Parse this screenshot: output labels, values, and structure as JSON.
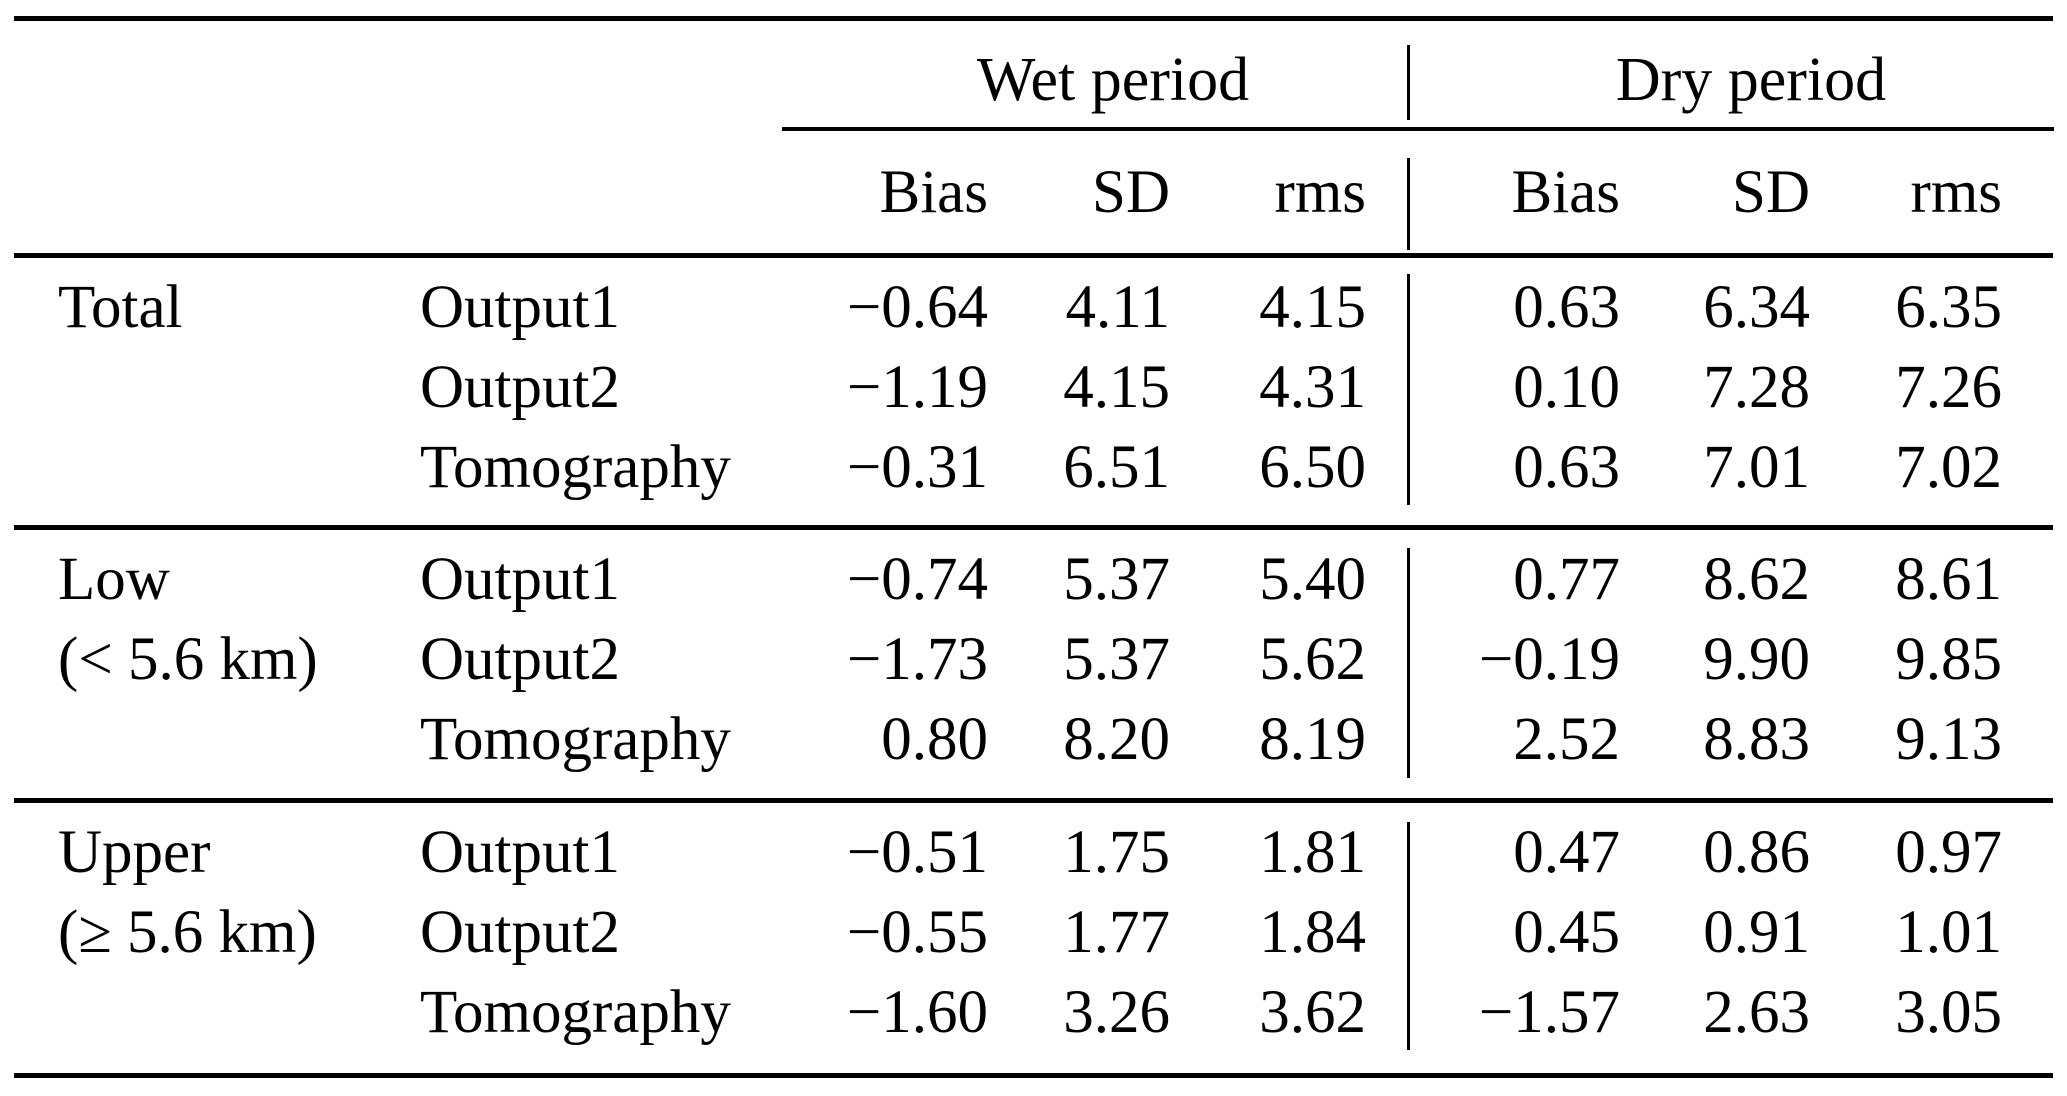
{
  "table": {
    "header": {
      "groups": [
        {
          "label": "Wet period"
        },
        {
          "label": "Dry period"
        }
      ],
      "columns": [
        "Bias",
        "SD",
        "rms"
      ]
    },
    "body": {
      "groups": [
        {
          "label": "Total",
          "sublabel": "",
          "rows": [
            {
              "method": "Output1",
              "values": [
                "−0.64",
                "4.11",
                "4.15",
                "0.63",
                "6.34",
                "6.35"
              ]
            },
            {
              "method": "Output2",
              "values": [
                "−1.19",
                "4.15",
                "4.31",
                "0.10",
                "7.28",
                "7.26"
              ]
            },
            {
              "method": "Tomography",
              "values": [
                "−0.31",
                "6.51",
                "6.50",
                "0.63",
                "7.01",
                "7.02"
              ]
            }
          ]
        },
        {
          "label": "Low",
          "sublabel": "(< 5.6 km)",
          "rows": [
            {
              "method": "Output1",
              "values": [
                "−0.74",
                "5.37",
                "5.40",
                "0.77",
                "8.62",
                "8.61"
              ]
            },
            {
              "method": "Output2",
              "values": [
                "−1.73",
                "5.37",
                "5.62",
                "−0.19",
                "9.90",
                "9.85"
              ]
            },
            {
              "method": "Tomography",
              "values": [
                "0.80",
                "8.20",
                "8.19",
                "2.52",
                "8.83",
                "9.13"
              ]
            }
          ]
        },
        {
          "label": "Upper",
          "sublabel": "(≥ 5.6 km)",
          "rows": [
            {
              "method": "Output1",
              "values": [
                "−0.51",
                "1.75",
                "1.81",
                "0.47",
                "0.86",
                "0.97"
              ]
            },
            {
              "method": "Output2",
              "values": [
                "−0.55",
                "1.77",
                "1.84",
                "0.45",
                "0.91",
                "1.01"
              ]
            },
            {
              "method": "Tomography",
              "values": [
                "−1.60",
                "3.26",
                "3.62",
                "−1.57",
                "2.63",
                "3.05"
              ]
            }
          ]
        }
      ]
    },
    "colors": {
      "text": "#000000",
      "background": "#ffffff",
      "rule": "#000000"
    }
  }
}
